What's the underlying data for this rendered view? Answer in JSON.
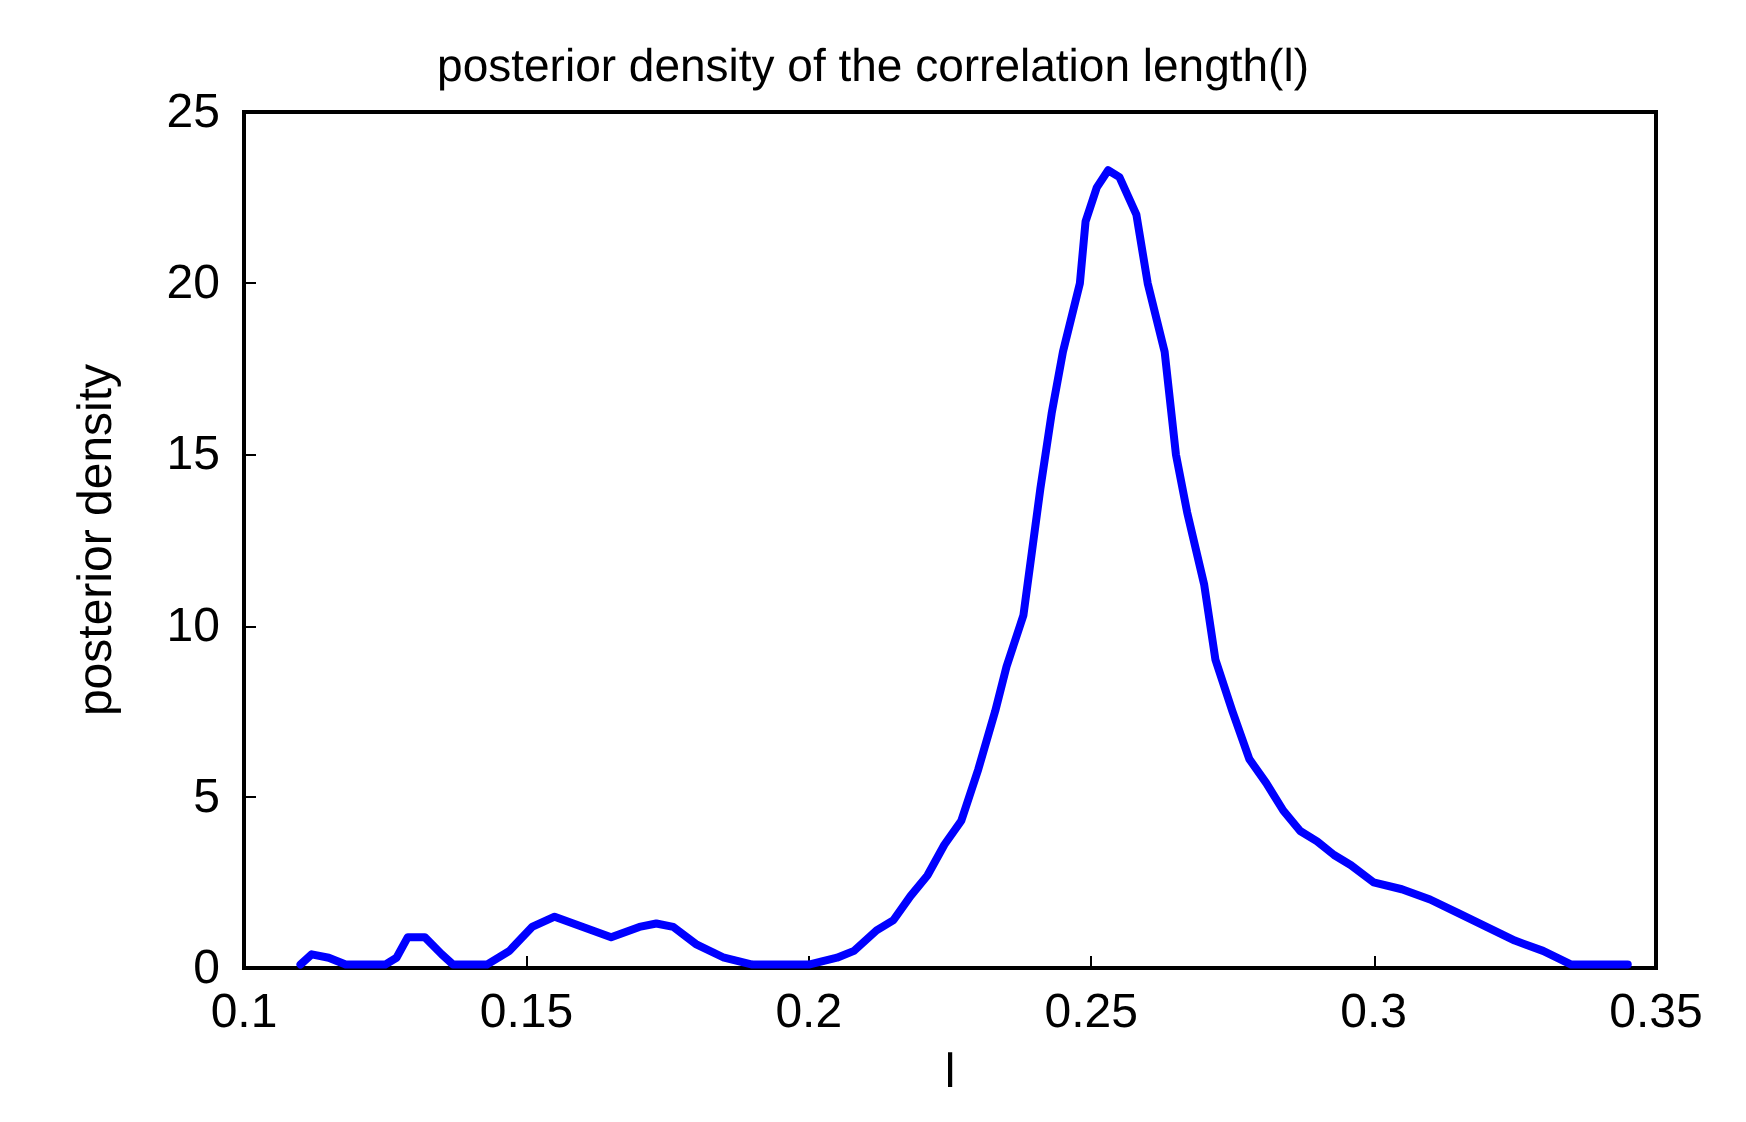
{
  "chart_data": {
    "type": "line",
    "title": "posterior density of the correlation length(l)",
    "xlabel": "l",
    "ylabel": "posterior density",
    "xlim": [
      0.1,
      0.35
    ],
    "ylim": [
      0,
      25
    ],
    "xticks": [
      0.1,
      0.15,
      0.2,
      0.25,
      0.3,
      0.35
    ],
    "yticks": [
      0,
      5,
      10,
      15,
      20,
      25
    ],
    "grid": false,
    "marker": "none",
    "line_style": "solid",
    "series": [
      {
        "color": "#0000ff",
        "x": [
          0.11,
          0.112,
          0.115,
          0.118,
          0.125,
          0.127,
          0.129,
          0.132,
          0.135,
          0.137,
          0.143,
          0.147,
          0.151,
          0.155,
          0.16,
          0.165,
          0.17,
          0.173,
          0.176,
          0.18,
          0.185,
          0.19,
          0.2,
          0.205,
          0.208,
          0.212,
          0.215,
          0.218,
          0.221,
          0.224,
          0.227,
          0.23,
          0.233,
          0.235,
          0.238,
          0.241,
          0.243,
          0.245,
          0.248,
          0.249,
          0.251,
          0.253,
          0.255,
          0.258,
          0.26,
          0.263,
          0.265,
          0.267,
          0.27,
          0.272,
          0.275,
          0.278,
          0.281,
          0.284,
          0.287,
          0.29,
          0.293,
          0.296,
          0.3,
          0.305,
          0.31,
          0.315,
          0.32,
          0.325,
          0.33,
          0.335,
          0.345
        ],
        "values": [
          0.1,
          0.4,
          0.3,
          0.1,
          0.1,
          0.3,
          0.9,
          0.9,
          0.4,
          0.1,
          0.1,
          0.5,
          1.2,
          1.5,
          1.2,
          0.9,
          1.2,
          1.3,
          1.2,
          0.7,
          0.3,
          0.1,
          0.1,
          0.3,
          0.5,
          1.1,
          1.4,
          2.1,
          2.7,
          3.6,
          4.3,
          5.8,
          7.5,
          8.8,
          10.3,
          14,
          16.2,
          18,
          20,
          21.8,
          22.8,
          23.3,
          23.1,
          22,
          20,
          18,
          15,
          13.3,
          11.2,
          9,
          7.5,
          6.1,
          5.4,
          4.6,
          4,
          3.7,
          3.3,
          3,
          2.5,
          2.3,
          2,
          1.6,
          1.2,
          0.8,
          0.5,
          0.1,
          0.1
        ]
      }
    ]
  }
}
